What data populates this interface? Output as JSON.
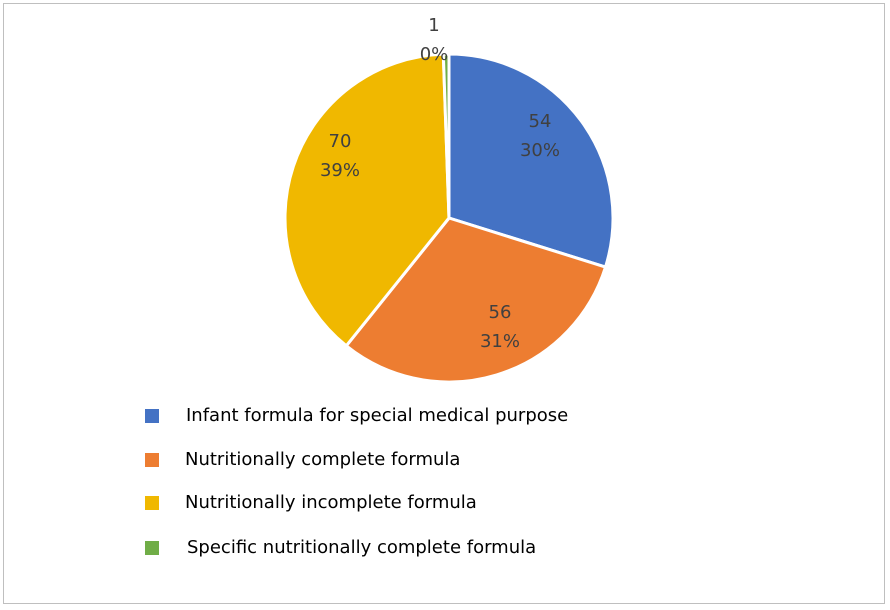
{
  "chart_data": {
    "type": "pie",
    "title": "",
    "slices": [
      {
        "name": "Infant formula for special medical purpose",
        "value": 54,
        "percent": "30%",
        "color": "#4472C4"
      },
      {
        "name": "Nutritionally complete formula",
        "value": 56,
        "percent": "31%",
        "color": "#ED7D31"
      },
      {
        "name": "Nutritionally incomplete formula",
        "value": 70,
        "percent": "39%",
        "color": "#F0B800"
      },
      {
        "name": "Specific nutritionally complete formula",
        "value": 1,
        "percent": "0%",
        "color": "#70AD47"
      }
    ],
    "legend_position": "bottom-left"
  }
}
